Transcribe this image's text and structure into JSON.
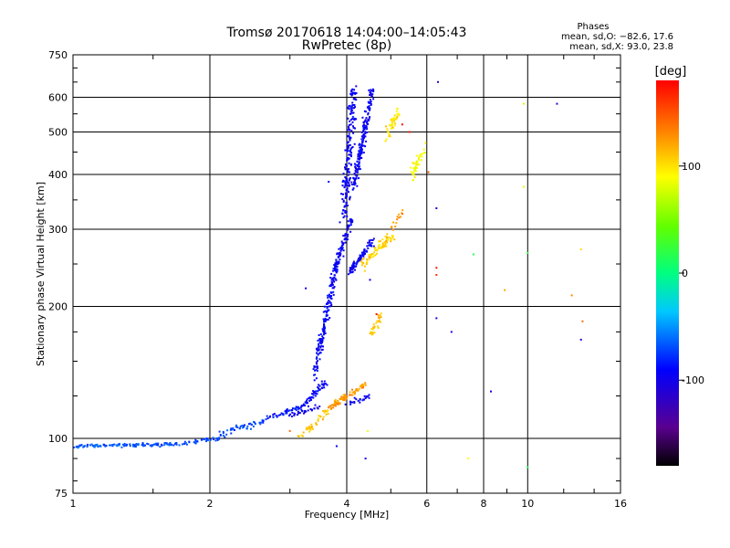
{
  "chart_data": {
    "type": "scatter",
    "title": "Tromsø 20170618 14:04:00–14:05:43",
    "subtitle": "RwPretec (8p)",
    "xlabel": "Frequency [MHz]",
    "ylabel": "Stationary phase Virtual Height [km]",
    "xscale": "log",
    "yscale": "log",
    "xlim": [
      1,
      16
    ],
    "ylim": [
      75,
      750
    ],
    "xticks": [
      1,
      2,
      4,
      6,
      8,
      10,
      16
    ],
    "xtick_labels": [
      "1",
      "2",
      "4",
      "6",
      "8",
      "10",
      "16"
    ],
    "yticks": [
      75,
      100,
      200,
      300,
      400,
      500,
      600,
      750
    ],
    "ytick_labels": [
      "75",
      "100",
      "200",
      "300",
      "400",
      "500",
      "600",
      "750"
    ],
    "grid": true,
    "stats": {
      "title": "Phases",
      "line1": "mean, sd,O: −82.6, 17.6",
      "line2": "mean, sd,X:  93.0, 23.8"
    },
    "colorbar": {
      "label": "[deg]",
      "range": [
        -180,
        180
      ],
      "ticks": [
        100,
        0,
        -100
      ],
      "tick_labels": [
        "100",
        "0",
        "-100"
      ]
    },
    "series": [
      {
        "name": "O-mode (blue)",
        "segments": [
          {
            "f0": 1.0,
            "f1": 1.7,
            "h0": 96,
            "h1": 97,
            "n": 130,
            "jf": 0.01,
            "jh": 1.2,
            "phase": -68
          },
          {
            "f0": 1.7,
            "f1": 2.1,
            "h0": 97,
            "h1": 100,
            "n": 40,
            "jf": 0.01,
            "jh": 1.5,
            "phase": -70
          },
          {
            "f0": 2.1,
            "f1": 2.6,
            "h0": 102,
            "h1": 110,
            "n": 45,
            "jf": 0.015,
            "jh": 3,
            "phase": -72
          },
          {
            "f0": 2.6,
            "f1": 3.2,
            "h0": 110,
            "h1": 118,
            "n": 50,
            "jf": 0.015,
            "jh": 3,
            "phase": -85
          },
          {
            "f0": 3.2,
            "f1": 3.6,
            "h0": 118,
            "h1": 135,
            "n": 55,
            "jf": 0.015,
            "jh": 4,
            "phase": -90
          },
          {
            "f0": 3.4,
            "f1": 3.8,
            "h0": 140,
            "h1": 250,
            "n": 180,
            "jf": 0.02,
            "jh": 8,
            "phase": -92
          },
          {
            "f0": 3.8,
            "f1": 4.1,
            "h0": 250,
            "h1": 320,
            "n": 70,
            "jf": 0.02,
            "jh": 10,
            "phase": -95
          },
          {
            "f0": 3.95,
            "f1": 4.15,
            "h0": 320,
            "h1": 640,
            "n": 200,
            "jf": 0.03,
            "jh": 18,
            "phase": -96
          },
          {
            "f0": 4.15,
            "f1": 4.55,
            "h0": 380,
            "h1": 620,
            "n": 180,
            "jf": 0.02,
            "jh": 25,
            "phase": -95
          },
          {
            "f0": 4.05,
            "f1": 4.55,
            "h0": 240,
            "h1": 280,
            "n": 90,
            "jf": 0.02,
            "jh": 8,
            "phase": -97
          },
          {
            "f0": 4.0,
            "f1": 4.5,
            "h0": 120,
            "h1": 125,
            "n": 25,
            "jf": 0.02,
            "jh": 3,
            "phase": -94
          },
          {
            "f0": 3.0,
            "f1": 3.5,
            "h0": 113,
            "h1": 118,
            "n": 30,
            "jf": 0.015,
            "jh": 2,
            "phase": -100
          }
        ],
        "scatter": [
          [
            6.35,
            650,
            -120
          ],
          [
            6.3,
            335,
            -110
          ],
          [
            11.6,
            580,
            -115
          ],
          [
            8.3,
            128,
            -100
          ],
          [
            6.3,
            188,
            -110
          ],
          [
            13.1,
            168,
            -105
          ],
          [
            3.65,
            385,
            -95
          ],
          [
            3.25,
            220,
            -100
          ],
          [
            4.4,
            90,
            -100
          ],
          [
            3.8,
            96,
            -95
          ],
          [
            4.5,
            230,
            -97
          ],
          [
            6.8,
            175,
            -105
          ]
        ]
      },
      {
        "name": "X-mode (yellow/orange)",
        "segments": [
          {
            "f0": 3.15,
            "f1": 3.7,
            "h0": 100,
            "h1": 118,
            "n": 45,
            "jf": 0.02,
            "jh": 3,
            "phase": 110
          },
          {
            "f0": 3.7,
            "f1": 4.4,
            "h0": 118,
            "h1": 133,
            "n": 90,
            "jf": 0.02,
            "jh": 3,
            "phase": 125
          },
          {
            "f0": 4.5,
            "f1": 4.75,
            "h0": 172,
            "h1": 190,
            "n": 30,
            "jf": 0.02,
            "jh": 5,
            "phase": 110
          },
          {
            "f0": 4.35,
            "f1": 5.05,
            "h0": 250,
            "h1": 290,
            "n": 80,
            "jf": 0.03,
            "jh": 10,
            "phase": 105
          },
          {
            "f0": 4.8,
            "f1": 5.2,
            "h0": 470,
            "h1": 560,
            "n": 45,
            "jf": 0.02,
            "jh": 18,
            "phase": 100
          },
          {
            "f0": 5.5,
            "f1": 5.95,
            "h0": 390,
            "h1": 460,
            "n": 45,
            "jf": 0.02,
            "jh": 18,
            "phase": 90
          },
          {
            "f0": 5.0,
            "f1": 5.3,
            "h0": 300,
            "h1": 330,
            "n": 15,
            "jf": 0.02,
            "jh": 8,
            "phase": 125
          }
        ],
        "scatter": [
          [
            13.1,
            270,
            100
          ],
          [
            12.5,
            212,
            130
          ],
          [
            13.2,
            185,
            140
          ],
          [
            8.9,
            218,
            120
          ],
          [
            9.8,
            580,
            75
          ],
          [
            9.8,
            375,
            80
          ],
          [
            7.4,
            90,
            90
          ],
          [
            10.0,
            265,
            20
          ],
          [
            10.0,
            86,
            15
          ],
          [
            7.6,
            263,
            15
          ],
          [
            4.45,
            104,
            85
          ],
          [
            3.0,
            104,
            140
          ],
          [
            5.5,
            500,
            170
          ],
          [
            5.3,
            520,
            175
          ],
          [
            6.3,
            245,
            170
          ],
          [
            6.3,
            236,
            160
          ],
          [
            4.65,
            192,
            175
          ],
          [
            6.05,
            405,
            150
          ]
        ]
      }
    ]
  }
}
